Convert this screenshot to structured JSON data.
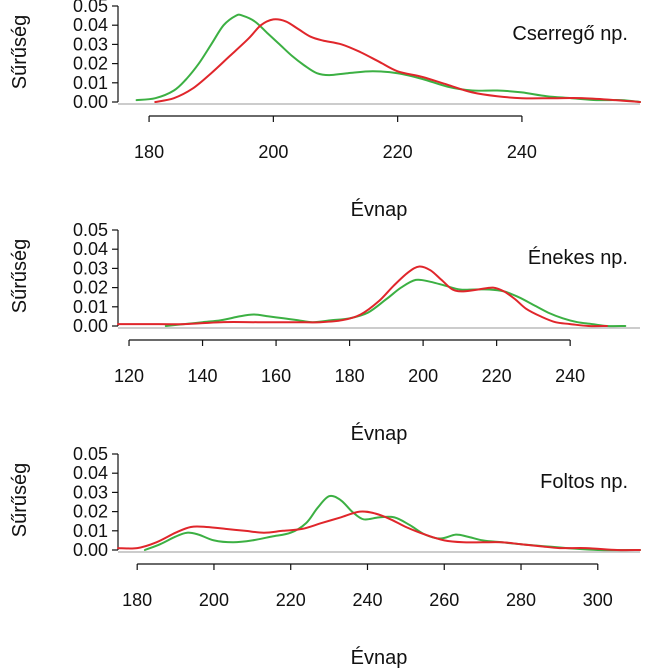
{
  "chart_data": [
    {
      "type": "line",
      "title": "Cserregő np.",
      "xlabel": "Évnap",
      "ylabel": "Sűrűség",
      "xlim": [
        175,
        259
      ],
      "ylim": [
        0,
        0.05
      ],
      "x_ticks": [
        180,
        200,
        220,
        240
      ],
      "y_ticks": [
        0.0,
        0.01,
        0.02,
        0.03,
        0.04,
        0.05
      ],
      "legend": "none",
      "grid": false,
      "series": [
        {
          "color": "#3cb043",
          "points": [
            [
              178,
              0.001
            ],
            [
              181,
              0.002
            ],
            [
              184,
              0.006
            ],
            [
              186,
              0.012
            ],
            [
              188,
              0.02
            ],
            [
              190,
              0.03
            ],
            [
              192,
              0.04
            ],
            [
              194,
              0.045
            ],
            [
              195,
              0.045
            ],
            [
              197,
              0.042
            ],
            [
              199,
              0.036
            ],
            [
              201,
              0.03
            ],
            [
              203,
              0.024
            ],
            [
              205,
              0.019
            ],
            [
              207,
              0.015
            ],
            [
              209,
              0.014
            ],
            [
              212,
              0.015
            ],
            [
              216,
              0.016
            ],
            [
              220,
              0.015
            ],
            [
              224,
              0.012
            ],
            [
              228,
              0.008
            ],
            [
              232,
              0.006
            ],
            [
              236,
              0.006
            ],
            [
              240,
              0.005
            ],
            [
              244,
              0.003
            ],
            [
              248,
              0.002
            ],
            [
              252,
              0.001
            ],
            [
              256,
              0.001
            ],
            [
              259,
              0.0
            ]
          ]
        },
        {
          "color": "#e0262b",
          "points": [
            [
              181,
              0.0
            ],
            [
              184,
              0.002
            ],
            [
              187,
              0.007
            ],
            [
              190,
              0.015
            ],
            [
              193,
              0.024
            ],
            [
              196,
              0.033
            ],
            [
              198,
              0.04
            ],
            [
              200,
              0.043
            ],
            [
              202,
              0.042
            ],
            [
              204,
              0.038
            ],
            [
              206,
              0.034
            ],
            [
              208,
              0.032
            ],
            [
              211,
              0.03
            ],
            [
              214,
              0.026
            ],
            [
              217,
              0.021
            ],
            [
              220,
              0.016
            ],
            [
              224,
              0.013
            ],
            [
              228,
              0.009
            ],
            [
              232,
              0.005
            ],
            [
              236,
              0.003
            ],
            [
              240,
              0.002
            ],
            [
              245,
              0.002
            ],
            [
              250,
              0.002
            ],
            [
              255,
              0.001
            ],
            [
              259,
              0.0
            ]
          ]
        }
      ]
    },
    {
      "type": "line",
      "title": "Énekes np.",
      "xlabel": "Évnap",
      "ylabel": "Sűrűség",
      "xlim": [
        117,
        259
      ],
      "ylim": [
        0,
        0.05
      ],
      "x_ticks": [
        120,
        140,
        160,
        180,
        200,
        220,
        240
      ],
      "y_ticks": [
        0.0,
        0.01,
        0.02,
        0.03,
        0.04,
        0.05
      ],
      "legend": "none",
      "grid": false,
      "series": [
        {
          "color": "#3cb043",
          "points": [
            [
              130,
              0.0
            ],
            [
              135,
              0.001
            ],
            [
              140,
              0.002
            ],
            [
              145,
              0.003
            ],
            [
              150,
              0.005
            ],
            [
              154,
              0.006
            ],
            [
              158,
              0.005
            ],
            [
              162,
              0.004
            ],
            [
              166,
              0.003
            ],
            [
              170,
              0.002
            ],
            [
              175,
              0.003
            ],
            [
              180,
              0.004
            ],
            [
              185,
              0.007
            ],
            [
              190,
              0.014
            ],
            [
              194,
              0.02
            ],
            [
              198,
              0.024
            ],
            [
              202,
              0.023
            ],
            [
              206,
              0.021
            ],
            [
              210,
              0.019
            ],
            [
              214,
              0.019
            ],
            [
              218,
              0.019
            ],
            [
              222,
              0.018
            ],
            [
              226,
              0.015
            ],
            [
              230,
              0.011
            ],
            [
              234,
              0.007
            ],
            [
              238,
              0.004
            ],
            [
              242,
              0.002
            ],
            [
              246,
              0.001
            ],
            [
              250,
              0.0
            ],
            [
              255,
              0.0
            ]
          ]
        },
        {
          "color": "#e0262b",
          "points": [
            [
              117,
              0.001
            ],
            [
              125,
              0.001
            ],
            [
              135,
              0.001
            ],
            [
              145,
              0.002
            ],
            [
              155,
              0.002
            ],
            [
              165,
              0.002
            ],
            [
              172,
              0.002
            ],
            [
              178,
              0.003
            ],
            [
              183,
              0.006
            ],
            [
              188,
              0.013
            ],
            [
              192,
              0.021
            ],
            [
              196,
              0.028
            ],
            [
              199,
              0.031
            ],
            [
              202,
              0.029
            ],
            [
              205,
              0.024
            ],
            [
              208,
              0.019
            ],
            [
              211,
              0.018
            ],
            [
              215,
              0.019
            ],
            [
              219,
              0.02
            ],
            [
              222,
              0.018
            ],
            [
              225,
              0.014
            ],
            [
              228,
              0.009
            ],
            [
              232,
              0.005
            ],
            [
              236,
              0.002
            ],
            [
              240,
              0.001
            ],
            [
              245,
              0.0
            ],
            [
              250,
              0.0
            ]
          ]
        }
      ]
    },
    {
      "type": "line",
      "title": "Foltos np.",
      "xlabel": "Évnap",
      "ylabel": "Sűrűség",
      "xlim": [
        175,
        311
      ],
      "ylim": [
        0,
        0.05
      ],
      "x_ticks": [
        180,
        200,
        220,
        240,
        260,
        280,
        300
      ],
      "y_ticks": [
        0.0,
        0.01,
        0.02,
        0.03,
        0.04,
        0.05
      ],
      "legend": "none",
      "grid": false,
      "series": [
        {
          "color": "#3cb043",
          "points": [
            [
              182,
              0.0
            ],
            [
              186,
              0.003
            ],
            [
              190,
              0.007
            ],
            [
              193,
              0.009
            ],
            [
              196,
              0.008
            ],
            [
              200,
              0.005
            ],
            [
              205,
              0.004
            ],
            [
              210,
              0.005
            ],
            [
              215,
              0.007
            ],
            [
              220,
              0.009
            ],
            [
              224,
              0.014
            ],
            [
              227,
              0.022
            ],
            [
              230,
              0.028
            ],
            [
              233,
              0.026
            ],
            [
              236,
              0.02
            ],
            [
              239,
              0.016
            ],
            [
              243,
              0.017
            ],
            [
              247,
              0.017
            ],
            [
              251,
              0.013
            ],
            [
              255,
              0.008
            ],
            [
              259,
              0.006
            ],
            [
              263,
              0.008
            ],
            [
              266,
              0.007
            ],
            [
              270,
              0.005
            ],
            [
              275,
              0.004
            ],
            [
              280,
              0.003
            ],
            [
              286,
              0.002
            ],
            [
              292,
              0.001
            ],
            [
              300,
              0.0
            ],
            [
              311,
              0.0
            ]
          ]
        },
        {
          "color": "#e0262b",
          "points": [
            [
              175,
              0.001
            ],
            [
              180,
              0.001
            ],
            [
              185,
              0.004
            ],
            [
              190,
              0.009
            ],
            [
              194,
              0.012
            ],
            [
              198,
              0.012
            ],
            [
              203,
              0.011
            ],
            [
              208,
              0.01
            ],
            [
              213,
              0.009
            ],
            [
              218,
              0.01
            ],
            [
              223,
              0.011
            ],
            [
              228,
              0.014
            ],
            [
              233,
              0.017
            ],
            [
              238,
              0.02
            ],
            [
              242,
              0.019
            ],
            [
              246,
              0.016
            ],
            [
              250,
              0.012
            ],
            [
              255,
              0.008
            ],
            [
              260,
              0.005
            ],
            [
              265,
              0.004
            ],
            [
              270,
              0.004
            ],
            [
              275,
              0.004
            ],
            [
              280,
              0.003
            ],
            [
              285,
              0.002
            ],
            [
              290,
              0.001
            ],
            [
              297,
              0.001
            ],
            [
              305,
              0.0
            ],
            [
              311,
              0.0
            ]
          ]
        }
      ]
    }
  ]
}
